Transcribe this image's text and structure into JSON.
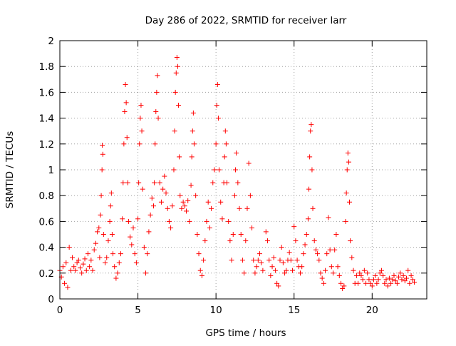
{
  "chart_data": {
    "type": "scatter",
    "title": "Day 286 of 2022, SRMTID for receiver larr",
    "xlabel": "GPS time / hours",
    "ylabel": "SRMTID / TECUs",
    "xlim": [
      0,
      23.5
    ],
    "ylim": [
      0,
      2
    ],
    "grid": true,
    "marker": "+",
    "color": "#ff0000",
    "x_ticks": [
      {
        "value": 0,
        "label": "0"
      },
      {
        "value": 5,
        "label": "5"
      },
      {
        "value": 10,
        "label": "10"
      },
      {
        "value": 15,
        "label": "15"
      },
      {
        "value": 20,
        "label": "20"
      }
    ],
    "y_ticks": [
      {
        "value": 0,
        "label": "0"
      },
      {
        "value": 0.2,
        "label": "0.2"
      },
      {
        "value": 0.4,
        "label": "0.4"
      },
      {
        "value": 0.6,
        "label": "0.6"
      },
      {
        "value": 0.8,
        "label": "0.8"
      },
      {
        "value": 1,
        "label": "1"
      },
      {
        "value": 1.2,
        "label": "1.2"
      },
      {
        "value": 1.4,
        "label": "1.4"
      },
      {
        "value": 1.6,
        "label": "1.6"
      },
      {
        "value": 1.8,
        "label": "1.8"
      },
      {
        "value": 2,
        "label": "2"
      }
    ],
    "series": [
      {
        "name": "SRMTID",
        "points": [
          [
            0.0,
            0.22
          ],
          [
            0.1,
            0.17
          ],
          [
            0.2,
            0.25
          ],
          [
            0.3,
            0.12
          ],
          [
            0.4,
            0.28
          ],
          [
            0.5,
            0.09
          ],
          [
            0.6,
            0.4
          ],
          [
            0.7,
            0.22
          ],
          [
            0.8,
            0.32
          ],
          [
            0.9,
            0.25
          ],
          [
            1.0,
            0.22
          ],
          [
            1.1,
            0.28
          ],
          [
            1.2,
            0.3
          ],
          [
            1.3,
            0.24
          ],
          [
            1.4,
            0.2
          ],
          [
            1.5,
            0.27
          ],
          [
            1.6,
            0.31
          ],
          [
            1.7,
            0.22
          ],
          [
            1.8,
            0.35
          ],
          [
            1.9,
            0.25
          ],
          [
            2.0,
            0.3
          ],
          [
            2.1,
            0.22
          ],
          [
            2.2,
            0.38
          ],
          [
            2.3,
            0.43
          ],
          [
            2.4,
            0.52
          ],
          [
            2.5,
            0.55
          ],
          [
            2.55,
            0.32
          ],
          [
            2.6,
            0.65
          ],
          [
            2.65,
            0.8
          ],
          [
            2.7,
            1.0
          ],
          [
            2.72,
            1.19
          ],
          [
            2.75,
            1.12
          ],
          [
            2.8,
            0.5
          ],
          [
            2.9,
            0.28
          ],
          [
            3.0,
            0.32
          ],
          [
            3.1,
            0.45
          ],
          [
            3.2,
            0.6
          ],
          [
            3.25,
            0.72
          ],
          [
            3.3,
            0.82
          ],
          [
            3.35,
            0.5
          ],
          [
            3.4,
            0.35
          ],
          [
            3.5,
            0.25
          ],
          [
            3.6,
            0.16
          ],
          [
            3.7,
            0.2
          ],
          [
            3.8,
            0.28
          ],
          [
            3.9,
            0.35
          ],
          [
            4.0,
            0.62
          ],
          [
            4.05,
            0.9
          ],
          [
            4.1,
            1.2
          ],
          [
            4.15,
            1.45
          ],
          [
            4.2,
            1.66
          ],
          [
            4.25,
            1.52
          ],
          [
            4.3,
            1.25
          ],
          [
            4.35,
            0.9
          ],
          [
            4.4,
            0.6
          ],
          [
            4.5,
            0.48
          ],
          [
            4.6,
            0.42
          ],
          [
            4.7,
            0.55
          ],
          [
            4.8,
            0.35
          ],
          [
            4.9,
            0.28
          ],
          [
            5.0,
            0.62
          ],
          [
            5.05,
            0.9
          ],
          [
            5.1,
            1.2
          ],
          [
            5.15,
            1.4
          ],
          [
            5.2,
            1.5
          ],
          [
            5.25,
            1.3
          ],
          [
            5.3,
            0.85
          ],
          [
            5.4,
            0.4
          ],
          [
            5.5,
            0.2
          ],
          [
            5.6,
            0.35
          ],
          [
            5.7,
            0.52
          ],
          [
            5.8,
            0.65
          ],
          [
            5.9,
            0.78
          ],
          [
            6.0,
            0.72
          ],
          [
            6.05,
            0.9
          ],
          [
            6.1,
            1.2
          ],
          [
            6.15,
            1.45
          ],
          [
            6.2,
            1.6
          ],
          [
            6.25,
            1.73
          ],
          [
            6.3,
            1.4
          ],
          [
            6.4,
            0.9
          ],
          [
            6.5,
            0.75
          ],
          [
            6.6,
            0.85
          ],
          [
            6.7,
            0.95
          ],
          [
            6.8,
            0.82
          ],
          [
            6.9,
            0.7
          ],
          [
            7.0,
            0.6
          ],
          [
            7.1,
            0.55
          ],
          [
            7.2,
            0.72
          ],
          [
            7.3,
            1.0
          ],
          [
            7.35,
            1.3
          ],
          [
            7.4,
            1.6
          ],
          [
            7.45,
            1.75
          ],
          [
            7.5,
            1.87
          ],
          [
            7.55,
            1.8
          ],
          [
            7.6,
            1.5
          ],
          [
            7.65,
            1.1
          ],
          [
            7.7,
            0.8
          ],
          [
            7.8,
            0.7
          ],
          [
            7.9,
            0.75
          ],
          [
            8.0,
            0.72
          ],
          [
            8.1,
            0.68
          ],
          [
            8.2,
            0.76
          ],
          [
            8.3,
            0.6
          ],
          [
            8.4,
            0.88
          ],
          [
            8.45,
            1.1
          ],
          [
            8.5,
            1.3
          ],
          [
            8.55,
            1.44
          ],
          [
            8.6,
            1.2
          ],
          [
            8.7,
            0.8
          ],
          [
            8.8,
            0.5
          ],
          [
            8.9,
            0.35
          ],
          [
            9.0,
            0.22
          ],
          [
            9.1,
            0.18
          ],
          [
            9.2,
            0.3
          ],
          [
            9.3,
            0.45
          ],
          [
            9.4,
            0.6
          ],
          [
            9.5,
            0.75
          ],
          [
            9.6,
            0.55
          ],
          [
            9.7,
            0.7
          ],
          [
            9.8,
            0.9
          ],
          [
            9.9,
            1.0
          ],
          [
            10.0,
            1.2
          ],
          [
            10.05,
            1.5
          ],
          [
            10.1,
            1.66
          ],
          [
            10.15,
            1.4
          ],
          [
            10.2,
            1.0
          ],
          [
            10.3,
            0.75
          ],
          [
            10.4,
            0.62
          ],
          [
            10.5,
            0.9
          ],
          [
            10.55,
            1.1
          ],
          [
            10.6,
            1.3
          ],
          [
            10.65,
            1.2
          ],
          [
            10.7,
            0.9
          ],
          [
            10.8,
            0.6
          ],
          [
            10.9,
            0.45
          ],
          [
            11.0,
            0.3
          ],
          [
            11.1,
            0.5
          ],
          [
            11.2,
            0.8
          ],
          [
            11.25,
            1.0
          ],
          [
            11.3,
            1.13
          ],
          [
            11.4,
            0.9
          ],
          [
            11.5,
            0.7
          ],
          [
            11.6,
            0.5
          ],
          [
            11.7,
            0.3
          ],
          [
            11.8,
            0.2
          ],
          [
            11.9,
            0.45
          ],
          [
            12.0,
            0.7
          ],
          [
            12.1,
            1.05
          ],
          [
            12.2,
            0.8
          ],
          [
            12.3,
            0.55
          ],
          [
            12.4,
            0.3
          ],
          [
            12.5,
            0.2
          ],
          [
            12.6,
            0.25
          ],
          [
            12.7,
            0.3
          ],
          [
            12.8,
            0.35
          ],
          [
            12.9,
            0.28
          ],
          [
            13.0,
            0.22
          ],
          [
            13.2,
            0.52
          ],
          [
            13.3,
            0.45
          ],
          [
            13.4,
            0.3
          ],
          [
            13.5,
            0.18
          ],
          [
            13.6,
            0.25
          ],
          [
            13.7,
            0.32
          ],
          [
            13.8,
            0.22
          ],
          [
            13.9,
            0.12
          ],
          [
            14.0,
            0.1
          ],
          [
            14.1,
            0.3
          ],
          [
            14.2,
            0.4
          ],
          [
            14.3,
            0.28
          ],
          [
            14.4,
            0.2
          ],
          [
            14.5,
            0.22
          ],
          [
            14.6,
            0.3
          ],
          [
            14.7,
            0.36
          ],
          [
            14.8,
            0.3
          ],
          [
            14.9,
            0.22
          ],
          [
            15.0,
            0.56
          ],
          [
            15.1,
            0.45
          ],
          [
            15.2,
            0.3
          ],
          [
            15.3,
            0.25
          ],
          [
            15.4,
            0.2
          ],
          [
            15.5,
            0.25
          ],
          [
            15.6,
            0.35
          ],
          [
            15.7,
            0.42
          ],
          [
            15.8,
            0.5
          ],
          [
            15.9,
            0.62
          ],
          [
            15.95,
            0.85
          ],
          [
            16.0,
            1.1
          ],
          [
            16.05,
            1.3
          ],
          [
            16.1,
            1.35
          ],
          [
            16.15,
            1.0
          ],
          [
            16.2,
            0.7
          ],
          [
            16.3,
            0.45
          ],
          [
            16.4,
            0.38
          ],
          [
            16.5,
            0.35
          ],
          [
            16.6,
            0.3
          ],
          [
            16.7,
            0.2
          ],
          [
            16.8,
            0.16
          ],
          [
            16.9,
            0.12
          ],
          [
            17.0,
            0.22
          ],
          [
            17.1,
            0.35
          ],
          [
            17.2,
            0.63
          ],
          [
            17.3,
            0.38
          ],
          [
            17.4,
            0.25
          ],
          [
            17.5,
            0.2
          ],
          [
            17.6,
            0.38
          ],
          [
            17.7,
            0.5
          ],
          [
            17.8,
            0.25
          ],
          [
            17.9,
            0.18
          ],
          [
            18.0,
            0.12
          ],
          [
            18.1,
            0.08
          ],
          [
            18.2,
            0.1
          ],
          [
            18.3,
            0.6
          ],
          [
            18.35,
            0.82
          ],
          [
            18.4,
            1.0
          ],
          [
            18.45,
            1.13
          ],
          [
            18.5,
            1.06
          ],
          [
            18.55,
            0.75
          ],
          [
            18.6,
            0.45
          ],
          [
            18.7,
            0.32
          ],
          [
            18.8,
            0.22
          ],
          [
            18.9,
            0.12
          ],
          [
            19.0,
            0.18
          ],
          [
            19.1,
            0.12
          ],
          [
            19.2,
            0.2
          ],
          [
            19.3,
            0.18
          ],
          [
            19.4,
            0.15
          ],
          [
            19.5,
            0.22
          ],
          [
            19.6,
            0.12
          ],
          [
            19.7,
            0.2
          ],
          [
            19.8,
            0.15
          ],
          [
            19.9,
            0.12
          ],
          [
            20.0,
            0.1
          ],
          [
            20.1,
            0.15
          ],
          [
            20.2,
            0.18
          ],
          [
            20.3,
            0.12
          ],
          [
            20.4,
            0.15
          ],
          [
            20.5,
            0.2
          ],
          [
            20.6,
            0.22
          ],
          [
            20.7,
            0.18
          ],
          [
            20.8,
            0.12
          ],
          [
            20.9,
            0.15
          ],
          [
            21.0,
            0.1
          ],
          [
            21.1,
            0.16
          ],
          [
            21.2,
            0.12
          ],
          [
            21.3,
            0.15
          ],
          [
            21.4,
            0.18
          ],
          [
            21.5,
            0.14
          ],
          [
            21.6,
            0.12
          ],
          [
            21.7,
            0.17
          ],
          [
            21.8,
            0.2
          ],
          [
            21.9,
            0.15
          ],
          [
            22.0,
            0.18
          ],
          [
            22.1,
            0.14
          ],
          [
            22.2,
            0.16
          ],
          [
            22.3,
            0.22
          ],
          [
            22.4,
            0.12
          ],
          [
            22.5,
            0.18
          ],
          [
            22.6,
            0.15
          ],
          [
            22.7,
            0.13
          ]
        ]
      }
    ]
  }
}
